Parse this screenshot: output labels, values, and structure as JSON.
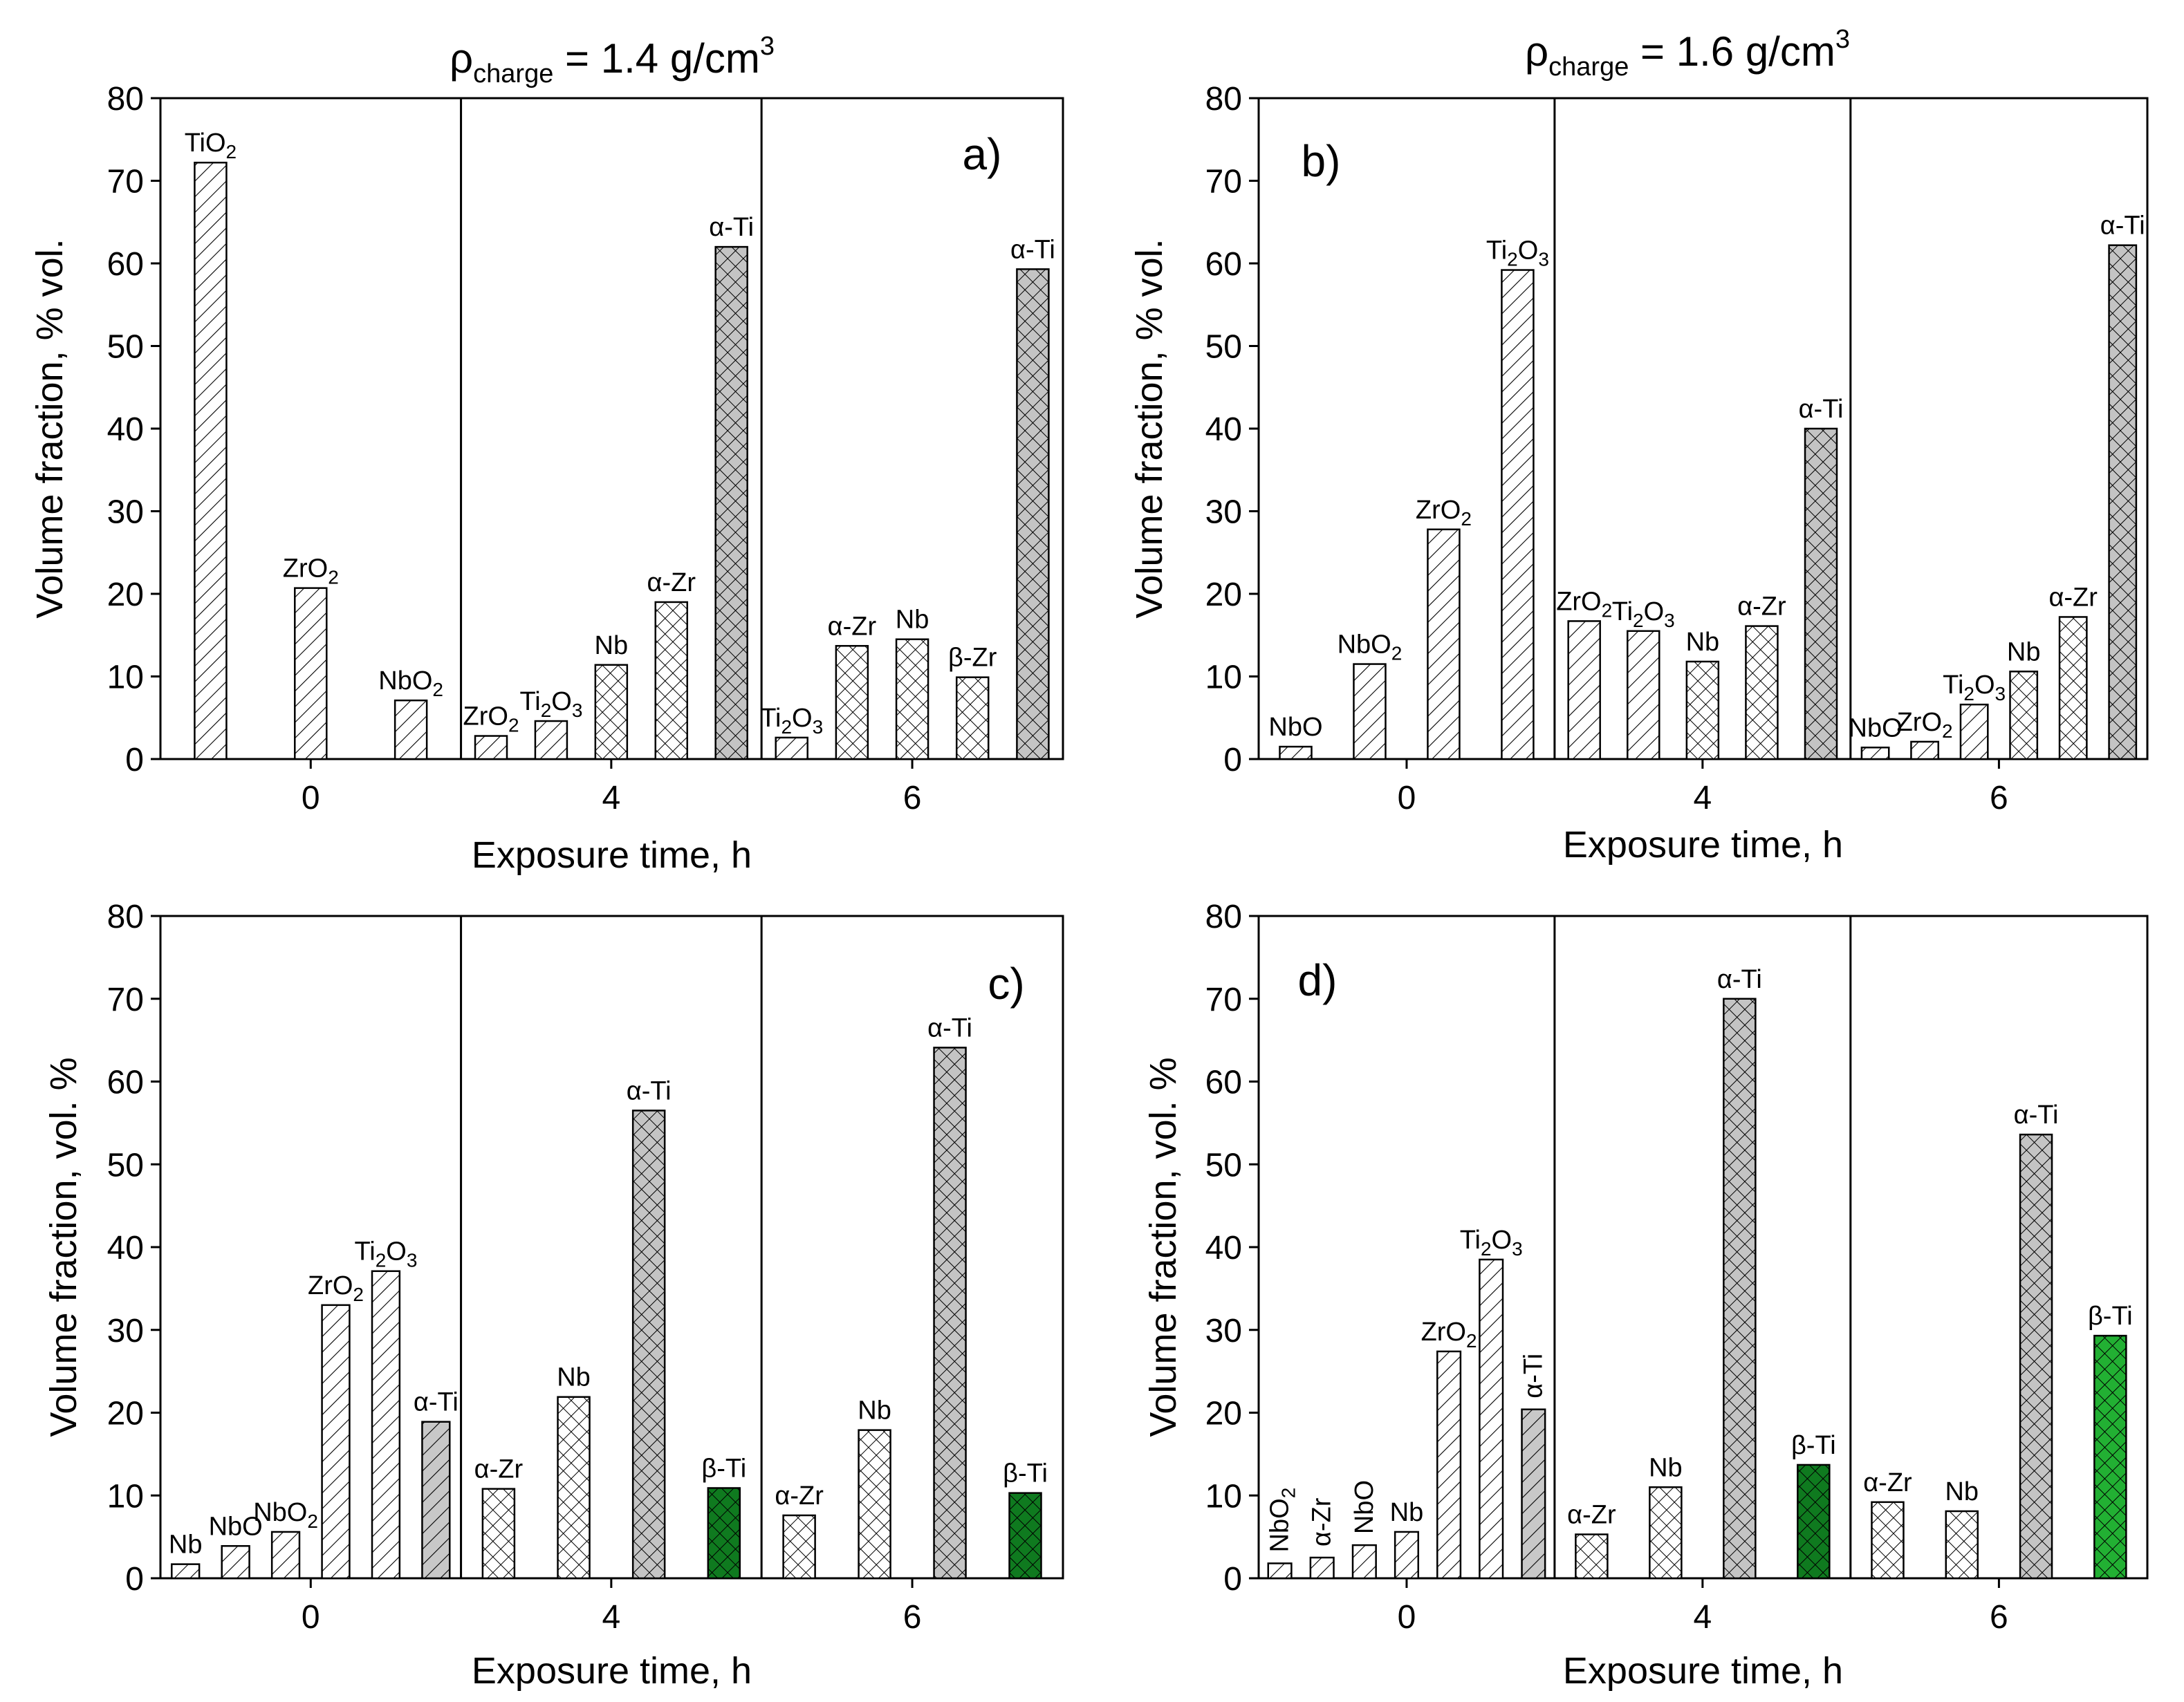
{
  "headers": [
    {
      "rho": "ρ",
      "sub": "charge",
      "value": " = 1.4 g/cm",
      "sup": "3"
    },
    {
      "rho": "ρ",
      "sub": "charge",
      "value": " = 1.6 g/cm",
      "sup": "3"
    }
  ],
  "chart_data": [
    {
      "type": "bar",
      "panel": "a)",
      "xlabel": "Exposure time, h",
      "ylabel": "Volume fraction, % vol.",
      "ylim": [
        0,
        80
      ],
      "yticks": [
        0,
        10,
        20,
        30,
        40,
        50,
        60,
        70,
        80
      ],
      "groups": [
        {
          "label": "0",
          "bars": [
            {
              "label": [
                "Ti",
                "O",
                "2"
              ],
              "value": 72.2,
              "pattern": "diag"
            },
            {
              "label": [
                "Zr",
                "O",
                "2"
              ],
              "value": 20.7,
              "pattern": "diag"
            },
            {
              "label": [
                "Nb",
                "O",
                "2"
              ],
              "value": 7.1,
              "pattern": "diag"
            }
          ]
        },
        {
          "label": "4",
          "bars": [
            {
              "label": [
                "Zr",
                "O",
                "2"
              ],
              "value": 2.8,
              "pattern": "diag"
            },
            {
              "label": [
                "Ti",
                "2",
                "O",
                "3"
              ],
              "value": 4.6,
              "pattern": "diag"
            },
            {
              "label": [
                "Nb"
              ],
              "value": 11.4,
              "pattern": "cross"
            },
            {
              "label": [
                "α-Zr"
              ],
              "value": 19.0,
              "pattern": "cross"
            },
            {
              "label": [
                "α-Ti"
              ],
              "value": 62.0,
              "pattern": "crossgray"
            }
          ]
        },
        {
          "label": "6",
          "bars": [
            {
              "label": [
                "Ti",
                "2",
                "O",
                "3"
              ],
              "value": 2.6,
              "pattern": "diag"
            },
            {
              "label": [
                "α-Zr"
              ],
              "value": 13.7,
              "pattern": "cross"
            },
            {
              "label": [
                "Nb"
              ],
              "value": 14.5,
              "pattern": "cross"
            },
            {
              "label": [
                "β-Zr"
              ],
              "value": 9.9,
              "pattern": "cross"
            },
            {
              "label": [
                "α-Ti"
              ],
              "value": 59.3,
              "pattern": "crossgray"
            }
          ]
        }
      ]
    },
    {
      "type": "bar",
      "panel": "b)",
      "xlabel": "Exposure time, h",
      "ylabel": "Volume fraction, % vol.",
      "ylim": [
        0,
        80
      ],
      "yticks": [
        0,
        10,
        20,
        30,
        40,
        50,
        60,
        70,
        80
      ],
      "groups": [
        {
          "label": "0",
          "bars": [
            {
              "label": [
                "NbO"
              ],
              "value": 1.5,
              "pattern": "diag"
            },
            {
              "label": [
                "Nb",
                "O",
                "2"
              ],
              "value": 11.5,
              "pattern": "diag"
            },
            {
              "label": [
                "Zr",
                "O",
                "2"
              ],
              "value": 27.8,
              "pattern": "diag"
            },
            {
              "label": [
                "Ti",
                "2",
                "O",
                "3"
              ],
              "value": 59.2,
              "pattern": "diag"
            }
          ]
        },
        {
          "label": "4",
          "bars": [
            {
              "label": [
                "Zr",
                "O",
                "2"
              ],
              "value": 16.7,
              "pattern": "diag"
            },
            {
              "label": [
                "Ti",
                "2",
                "O",
                "3"
              ],
              "value": 15.5,
              "pattern": "diag"
            },
            {
              "label": [
                "Nb"
              ],
              "value": 11.8,
              "pattern": "cross"
            },
            {
              "label": [
                "α-Zr"
              ],
              "value": 16.1,
              "pattern": "cross"
            },
            {
              "label": [
                "α-Ti"
              ],
              "value": 40.0,
              "pattern": "crossgray"
            }
          ]
        },
        {
          "label": "6",
          "bars": [
            {
              "label": [
                "NbO"
              ],
              "value": 1.4,
              "pattern": "diag"
            },
            {
              "label": [
                "Zr",
                "O",
                "2"
              ],
              "value": 2.1,
              "pattern": "diag"
            },
            {
              "label": [
                "Ti",
                "2",
                "O",
                "3"
              ],
              "value": 6.6,
              "pattern": "diag"
            },
            {
              "label": [
                "Nb"
              ],
              "value": 10.6,
              "pattern": "cross"
            },
            {
              "label": [
                "α-Zr"
              ],
              "value": 17.2,
              "pattern": "cross"
            },
            {
              "label": [
                "α-Ti"
              ],
              "value": 62.2,
              "pattern": "crossgray"
            }
          ]
        }
      ]
    },
    {
      "type": "bar",
      "panel": "c)",
      "xlabel": "Exposure time, h",
      "ylabel": "Volume fraction, vol. %",
      "ylim": [
        0,
        80
      ],
      "yticks": [
        0,
        10,
        20,
        30,
        40,
        50,
        60,
        70,
        80
      ],
      "groups": [
        {
          "label": "0",
          "bars": [
            {
              "label": [
                "Nb"
              ],
              "value": 1.7,
              "pattern": "diag"
            },
            {
              "label": [
                "NbO"
              ],
              "value": 3.9,
              "pattern": "diag"
            },
            {
              "label": [
                "Nb",
                "O",
                "2"
              ],
              "value": 5.6,
              "pattern": "diag"
            },
            {
              "label": [
                "Zr",
                "O",
                "2"
              ],
              "value": 33.0,
              "pattern": "diag"
            },
            {
              "label": [
                "Ti",
                "2",
                "O",
                "3"
              ],
              "value": 37.1,
              "pattern": "diag"
            },
            {
              "label": [
                "α-Ti"
              ],
              "value": 18.9,
              "pattern": "diaggray"
            }
          ]
        },
        {
          "label": "4",
          "bars": [
            {
              "label": [
                "α-Zr"
              ],
              "value": 10.8,
              "pattern": "cross"
            },
            {
              "label": [
                "Nb"
              ],
              "value": 21.9,
              "pattern": "cross"
            },
            {
              "label": [
                "α-Ti"
              ],
              "value": 56.5,
              "pattern": "crossgray"
            },
            {
              "label": [
                "β-Ti"
              ],
              "value": 10.9,
              "pattern": "crossdarkgreen"
            }
          ]
        },
        {
          "label": "6",
          "bars": [
            {
              "label": [
                "α-Zr"
              ],
              "value": 7.6,
              "pattern": "cross"
            },
            {
              "label": [
                "Nb"
              ],
              "value": 17.9,
              "pattern": "cross"
            },
            {
              "label": [
                "α-Ti"
              ],
              "value": 64.1,
              "pattern": "crossgray"
            },
            {
              "label": [
                "β-Ti"
              ],
              "value": 10.3,
              "pattern": "crossdarkgreen"
            }
          ]
        }
      ]
    },
    {
      "type": "bar",
      "panel": "d)",
      "xlabel": "Exposure time, h",
      "ylabel": "Volume fraction, vol. %",
      "ylim": [
        0,
        80
      ],
      "yticks": [
        0,
        10,
        20,
        30,
        40,
        50,
        60,
        70,
        80
      ],
      "groups": [
        {
          "label": "0",
          "bars": [
            {
              "label": [
                "Nb",
                "O",
                "2"
              ],
              "value": 1.8,
              "pattern": "diag",
              "vertical": true
            },
            {
              "label": [
                "α-Zr"
              ],
              "value": 2.5,
              "pattern": "diag",
              "vertical": true
            },
            {
              "label": [
                "NbO"
              ],
              "value": 4.0,
              "pattern": "diag",
              "vertical": true
            },
            {
              "label": [
                "Nb"
              ],
              "value": 5.6,
              "pattern": "diag"
            },
            {
              "label": [
                "Zr",
                "O",
                "2"
              ],
              "value": 27.4,
              "pattern": "diag"
            },
            {
              "label": [
                "Ti",
                "2",
                "O",
                "3"
              ],
              "value": 38.5,
              "pattern": "diag"
            },
            {
              "label": [
                "α-Ti"
              ],
              "value": 20.4,
              "pattern": "diaggray",
              "vertical": true
            }
          ]
        },
        {
          "label": "4",
          "bars": [
            {
              "label": [
                "α-Zr"
              ],
              "value": 5.3,
              "pattern": "cross"
            },
            {
              "label": [
                "Nb"
              ],
              "value": 11.0,
              "pattern": "cross"
            },
            {
              "label": [
                "α-Ti"
              ],
              "value": 70.0,
              "pattern": "crossgray"
            },
            {
              "label": [
                "β-Ti"
              ],
              "value": 13.7,
              "pattern": "crossdarkgreen"
            }
          ]
        },
        {
          "label": "6",
          "bars": [
            {
              "label": [
                "α-Zr"
              ],
              "value": 9.2,
              "pattern": "cross"
            },
            {
              "label": [
                "Nb"
              ],
              "value": 8.1,
              "pattern": "cross"
            },
            {
              "label": [
                "α-Ti"
              ],
              "value": 53.6,
              "pattern": "crossgray"
            },
            {
              "label": [
                "β-Ti"
              ],
              "value": 29.3,
              "pattern": "crossgreen"
            }
          ]
        }
      ]
    }
  ]
}
